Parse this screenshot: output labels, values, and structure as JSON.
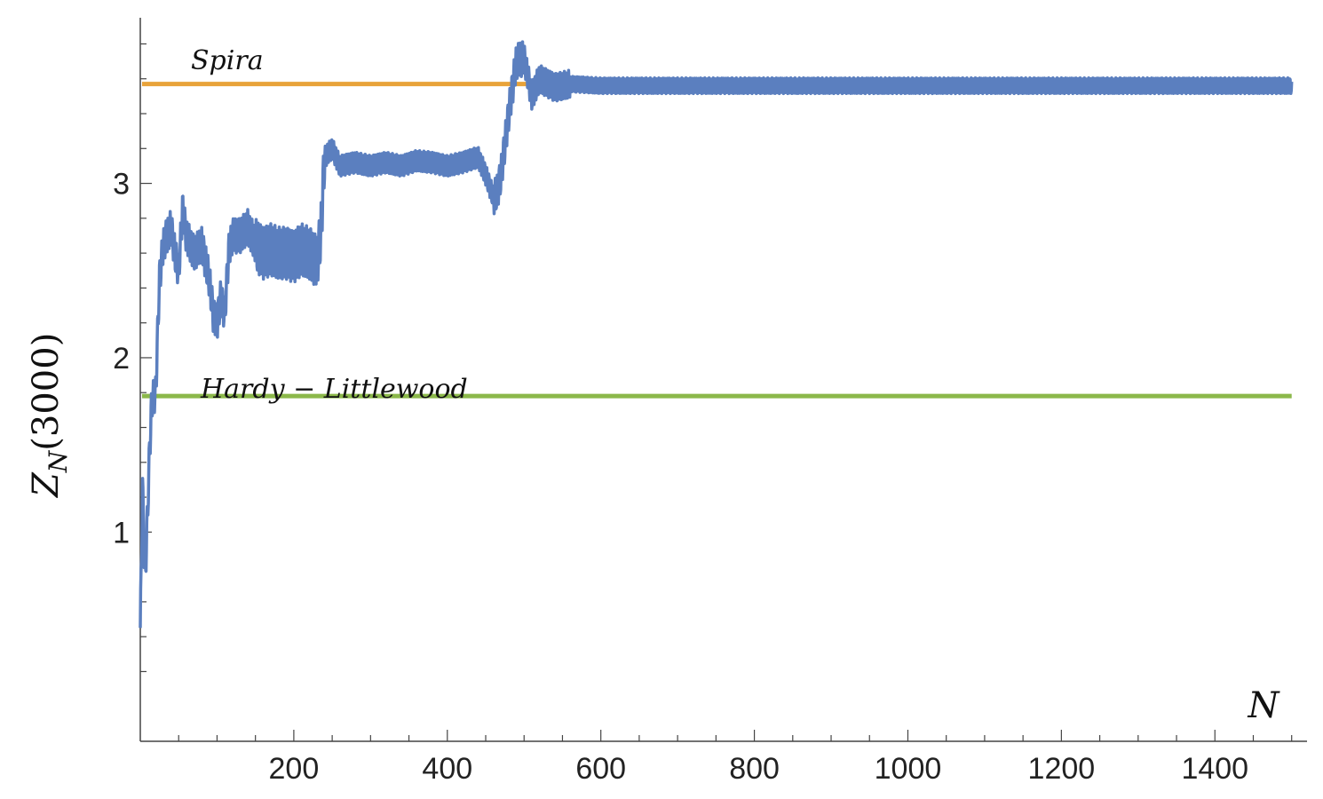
{
  "chart_data": {
    "type": "line",
    "title": "",
    "xlabel": "N",
    "ylabel": {
      "main": "Z",
      "sub": "N",
      "arg": "(3000)"
    },
    "xlim": [
      0,
      1520
    ],
    "ylim": [
      -0.2,
      3.95
    ],
    "xticks_labeled": [
      200,
      400,
      600,
      800,
      1000,
      1200,
      1400
    ],
    "xtick_labels": [
      "200",
      "400",
      "600",
      "800",
      "1000",
      "1200",
      "1400"
    ],
    "yticks_labeled": [
      1,
      2,
      3
    ],
    "ytick_labels": [
      "1",
      "2",
      "3"
    ],
    "grid": false,
    "colors": {
      "series": "#5b7fbf",
      "spira": "#e8a33a",
      "hardy": "#8bb84a",
      "axis": "#444444"
    },
    "series": [
      {
        "x": [
          0,
          3,
          6,
          9,
          12,
          15,
          20,
          25,
          30,
          35,
          40,
          45,
          50,
          55,
          60,
          70,
          80,
          90,
          95,
          100,
          105,
          110,
          115,
          120,
          130,
          140,
          150,
          160,
          170,
          180,
          190,
          200,
          210,
          220,
          230,
          235,
          240,
          250,
          260,
          280,
          300,
          320,
          340,
          360,
          380,
          400,
          420,
          440,
          450,
          460,
          465,
          470,
          480,
          485,
          490,
          500,
          510,
          520,
          540,
          560,
          600,
          700,
          800,
          900,
          1000,
          1100,
          1200,
          1300,
          1400,
          1500
        ],
        "y": [
          0.45,
          1.25,
          0.7,
          1.05,
          1.45,
          1.75,
          1.8,
          2.45,
          2.65,
          2.7,
          2.75,
          2.6,
          2.5,
          2.85,
          2.7,
          2.6,
          2.65,
          2.45,
          2.25,
          2.2,
          2.35,
          2.25,
          2.6,
          2.7,
          2.7,
          2.75,
          2.65,
          2.6,
          2.62,
          2.6,
          2.6,
          2.58,
          2.62,
          2.6,
          2.55,
          2.7,
          3.15,
          3.2,
          3.1,
          3.12,
          3.1,
          3.12,
          3.1,
          3.13,
          3.12,
          3.1,
          3.12,
          3.15,
          3.05,
          2.92,
          2.95,
          3.05,
          3.4,
          3.55,
          3.7,
          3.72,
          3.5,
          3.6,
          3.55,
          3.57,
          3.56,
          3.56,
          3.56,
          3.56,
          3.56,
          3.56,
          3.56,
          3.56,
          3.56,
          3.56
        ],
        "oscillation_amplitude": [
          0.1,
          0.15,
          0.15,
          0.1,
          0.05,
          0.05,
          0.04,
          0.03,
          0.02,
          0.02
        ]
      }
    ],
    "reference_lines": [
      {
        "name": "Spira",
        "y": 3.57
      },
      {
        "name": "Hardy − Littlewood",
        "y": 1.78
      }
    ]
  }
}
